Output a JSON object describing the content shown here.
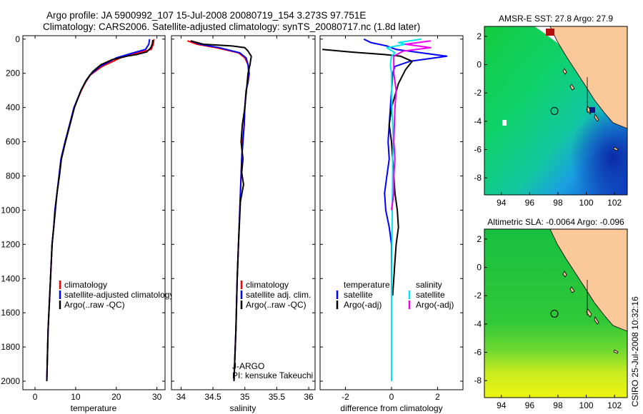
{
  "header": {
    "line1": "Argo profile: JA 5900992_107 15-Jul-2008 20080719_154 3.273S 97.751E",
    "line2": "Climatology: CARS2006. Satellite-adjusted climatology: synTS_20080717.nc (1.8d later)"
  },
  "side_text": "CSIRO 25-Jul-2008 10:32:16",
  "colors": {
    "red": "#ff0000",
    "blue": "#0000ff",
    "black": "#000000",
    "cyan": "#00e5ee",
    "magenta": "#ee00ee",
    "land": "#fbc89a"
  },
  "chart_data": [
    {
      "type": "line",
      "id": "temperature",
      "xlabel": "temperature",
      "xlim": [
        -3,
        32
      ],
      "ylim": [
        2050,
        -20
      ],
      "xticks": [
        0,
        10,
        20,
        30
      ],
      "yticks": [
        0,
        200,
        400,
        600,
        800,
        1000,
        1200,
        1400,
        1600,
        1800,
        2000
      ],
      "legend": [
        "climatology",
        "satellite-adjusted climatology",
        "Argo(..raw -QC)"
      ],
      "series": [
        {
          "name": "climatology",
          "color": "red",
          "x": [
            29.3,
            29.1,
            28.6,
            25.5,
            21,
            16.5,
            13.6,
            12.5,
            11.4,
            9.6,
            8.5,
            7.4,
            6.4,
            5.9,
            5.4,
            4.9,
            4.6,
            4.2,
            3.8,
            3.2,
            2.9
          ],
          "y": [
            0,
            30,
            60,
            80,
            110,
            160,
            210,
            250,
            300,
            400,
            500,
            600,
            700,
            800,
            900,
            1000,
            1100,
            1200,
            1400,
            1700,
            2000
          ]
        },
        {
          "name": "satellite-adjusted climatology",
          "color": "blue",
          "x": [
            28.2,
            28.0,
            27.2,
            24.2,
            20,
            16,
            13.5,
            12.4,
            11.3,
            9.6,
            8.5,
            7.4,
            6.4,
            5.9,
            5.4,
            4.9,
            4.6,
            4.2,
            3.8,
            3.2,
            2.9
          ],
          "y": [
            0,
            30,
            60,
            80,
            110,
            160,
            210,
            250,
            300,
            400,
            500,
            600,
            700,
            800,
            900,
            1000,
            1100,
            1200,
            1400,
            1700,
            2000
          ]
        },
        {
          "name": "Argo(..raw -QC)",
          "color": "black",
          "x": [
            29.0,
            28.9,
            28.5,
            27.5,
            25,
            22.5,
            19,
            16.2,
            14.2,
            12.6,
            11.3,
            9.7,
            8.6,
            7.5,
            6.5,
            6.0,
            5.4,
            5.0,
            4.6,
            4.2,
            3.8,
            3.2,
            2.9
          ],
          "y": [
            5,
            25,
            50,
            75,
            90,
            100,
            120,
            150,
            190,
            240,
            300,
            400,
            500,
            600,
            700,
            800,
            900,
            1000,
            1100,
            1200,
            1400,
            1700,
            2000
          ]
        }
      ]
    },
    {
      "type": "line",
      "id": "salinity",
      "xlabel": "salinity",
      "xlim": [
        33.85,
        36.1
      ],
      "ylim": [
        2050,
        -20
      ],
      "xticks": [
        34,
        34.5,
        35,
        35.5,
        36
      ],
      "legend": [
        "climatology",
        "satellite adj. clim.",
        "Argo(..raw -QC)"
      ],
      "annotations": [
        "J-ARGO",
        "PI: kensuke Takeuchi"
      ],
      "series": [
        {
          "name": "climatology",
          "color": "red",
          "x": [
            34.1,
            34.25,
            34.55,
            34.9,
            35.0,
            35.05,
            35.07,
            35.05,
            35.02,
            35.0,
            34.99,
            34.96,
            34.95,
            34.94,
            34.93,
            34.92,
            34.9,
            34.88,
            34.86,
            34.83
          ],
          "y": [
            10,
            30,
            50,
            80,
            110,
            150,
            200,
            250,
            300,
            400,
            500,
            600,
            700,
            800,
            900,
            1000,
            1200,
            1400,
            1700,
            2000
          ]
        },
        {
          "name": "satellite adj. clim.",
          "color": "blue",
          "x": [
            34.15,
            34.3,
            34.6,
            34.92,
            35.02,
            35.05,
            35.06,
            35.05,
            35.02,
            35.0,
            34.99,
            34.97,
            34.95,
            34.94,
            34.93,
            34.92,
            34.9,
            34.88,
            34.86,
            34.83
          ],
          "y": [
            10,
            30,
            50,
            80,
            110,
            150,
            200,
            250,
            300,
            400,
            500,
            600,
            700,
            800,
            900,
            1000,
            1200,
            1400,
            1700,
            2000
          ]
        },
        {
          "name": "Argo(..raw -QC)",
          "color": "black",
          "x": [
            34.15,
            34.35,
            34.8,
            35.0,
            35.05,
            35.1,
            35.08,
            35.05,
            35.03,
            35.0,
            34.96,
            34.94,
            34.97,
            34.95,
            34.98,
            34.93,
            34.9,
            34.88,
            34.86,
            34.83
          ],
          "y": [
            10,
            30,
            40,
            50,
            70,
            100,
            150,
            200,
            280,
            400,
            500,
            600,
            700,
            780,
            850,
            950,
            1200,
            1400,
            1700,
            2000
          ]
        }
      ]
    },
    {
      "type": "line",
      "id": "difference",
      "xlabel": "difference from climatology",
      "xlim": [
        -3.1,
        3.1
      ],
      "ylim": [
        2050,
        -20
      ],
      "xticks": [
        -2,
        0,
        2
      ],
      "legend_left": [
        "temperature",
        "satellite",
        "Argo(-adj)"
      ],
      "legend_right": [
        "salinity",
        "satellite",
        "Argo(-adj)"
      ],
      "series": [
        {
          "name": "temperature satellite",
          "color": "blue",
          "x": [
            -1.2,
            -0.9,
            -0.2,
            0.2,
            2.4,
            0.8,
            0.15,
            0.05,
            0.0,
            -0.05,
            -0.1,
            -0.15,
            -0.1,
            -0.2,
            -0.3,
            -0.25,
            -0.1,
            0.0,
            0.0,
            0.0
          ],
          "y": [
            0,
            20,
            40,
            60,
            100,
            130,
            160,
            200,
            300,
            400,
            500,
            600,
            700,
            800,
            900,
            1000,
            1100,
            1200,
            1600,
            2000
          ]
        },
        {
          "name": "temperature Argo(-adj)",
          "color": "black",
          "x": [
            -3.0,
            -1.8,
            -0.3,
            0.4,
            0.9,
            0.6,
            0.3,
            0.0,
            -0.1,
            0.0,
            0.05,
            0.1,
            0.15,
            0.25,
            0.3,
            0.2,
            0.15,
            0.1,
            0.05
          ],
          "y": [
            60,
            75,
            90,
            100,
            130,
            180,
            260,
            400,
            500,
            600,
            700,
            800,
            900,
            1000,
            1100,
            1200,
            1300,
            1400,
            1500
          ]
        },
        {
          "name": "salinity satellite",
          "color": "cyan",
          "x": [
            1.3,
            0.3,
            0.6,
            -0.2,
            0.15,
            0.0,
            -0.05,
            0.0,
            0.0,
            0.02,
            0.05,
            0.08,
            0.05,
            0.05,
            0.03,
            0.0,
            0.0
          ],
          "y": [
            0,
            20,
            30,
            50,
            80,
            100,
            150,
            200,
            300,
            400,
            500,
            600,
            700,
            800,
            1000,
            1500,
            2000
          ]
        },
        {
          "name": "salinity Argo(-adj)",
          "color": "magenta",
          "x": [
            1.7,
            0.6,
            1.7,
            0.5,
            0.1,
            0.1,
            0.2,
            0.15,
            0.1,
            0.15,
            0.1,
            0.1,
            0.0
          ],
          "y": [
            10,
            30,
            50,
            70,
            100,
            200,
            300,
            400,
            600,
            700,
            800,
            900,
            1000
          ]
        }
      ]
    },
    {
      "type": "heatmap",
      "id": "sst_map",
      "title": "AMSR-E SST: 27.8 Argo: 27.9",
      "xlim": [
        92.8,
        102.9
      ],
      "ylim": [
        -9.2,
        2.7
      ],
      "xticks": [
        94,
        96,
        98,
        100,
        102
      ],
      "yticks": [
        2,
        0,
        -2,
        -4,
        -6,
        -8
      ],
      "argo_position": [
        97.751,
        -3.273
      ]
    },
    {
      "type": "heatmap",
      "id": "sla_map",
      "title": "Altimetric SLA: -0.0064 Argo: -0.096",
      "xlim": [
        92.8,
        102.9
      ],
      "ylim": [
        -9.2,
        2.7
      ],
      "xticks": [
        94,
        96,
        98,
        100,
        102
      ],
      "yticks": [
        2,
        0,
        -2,
        -4,
        -6,
        -8
      ],
      "argo_position": [
        97.751,
        -3.273
      ]
    }
  ]
}
